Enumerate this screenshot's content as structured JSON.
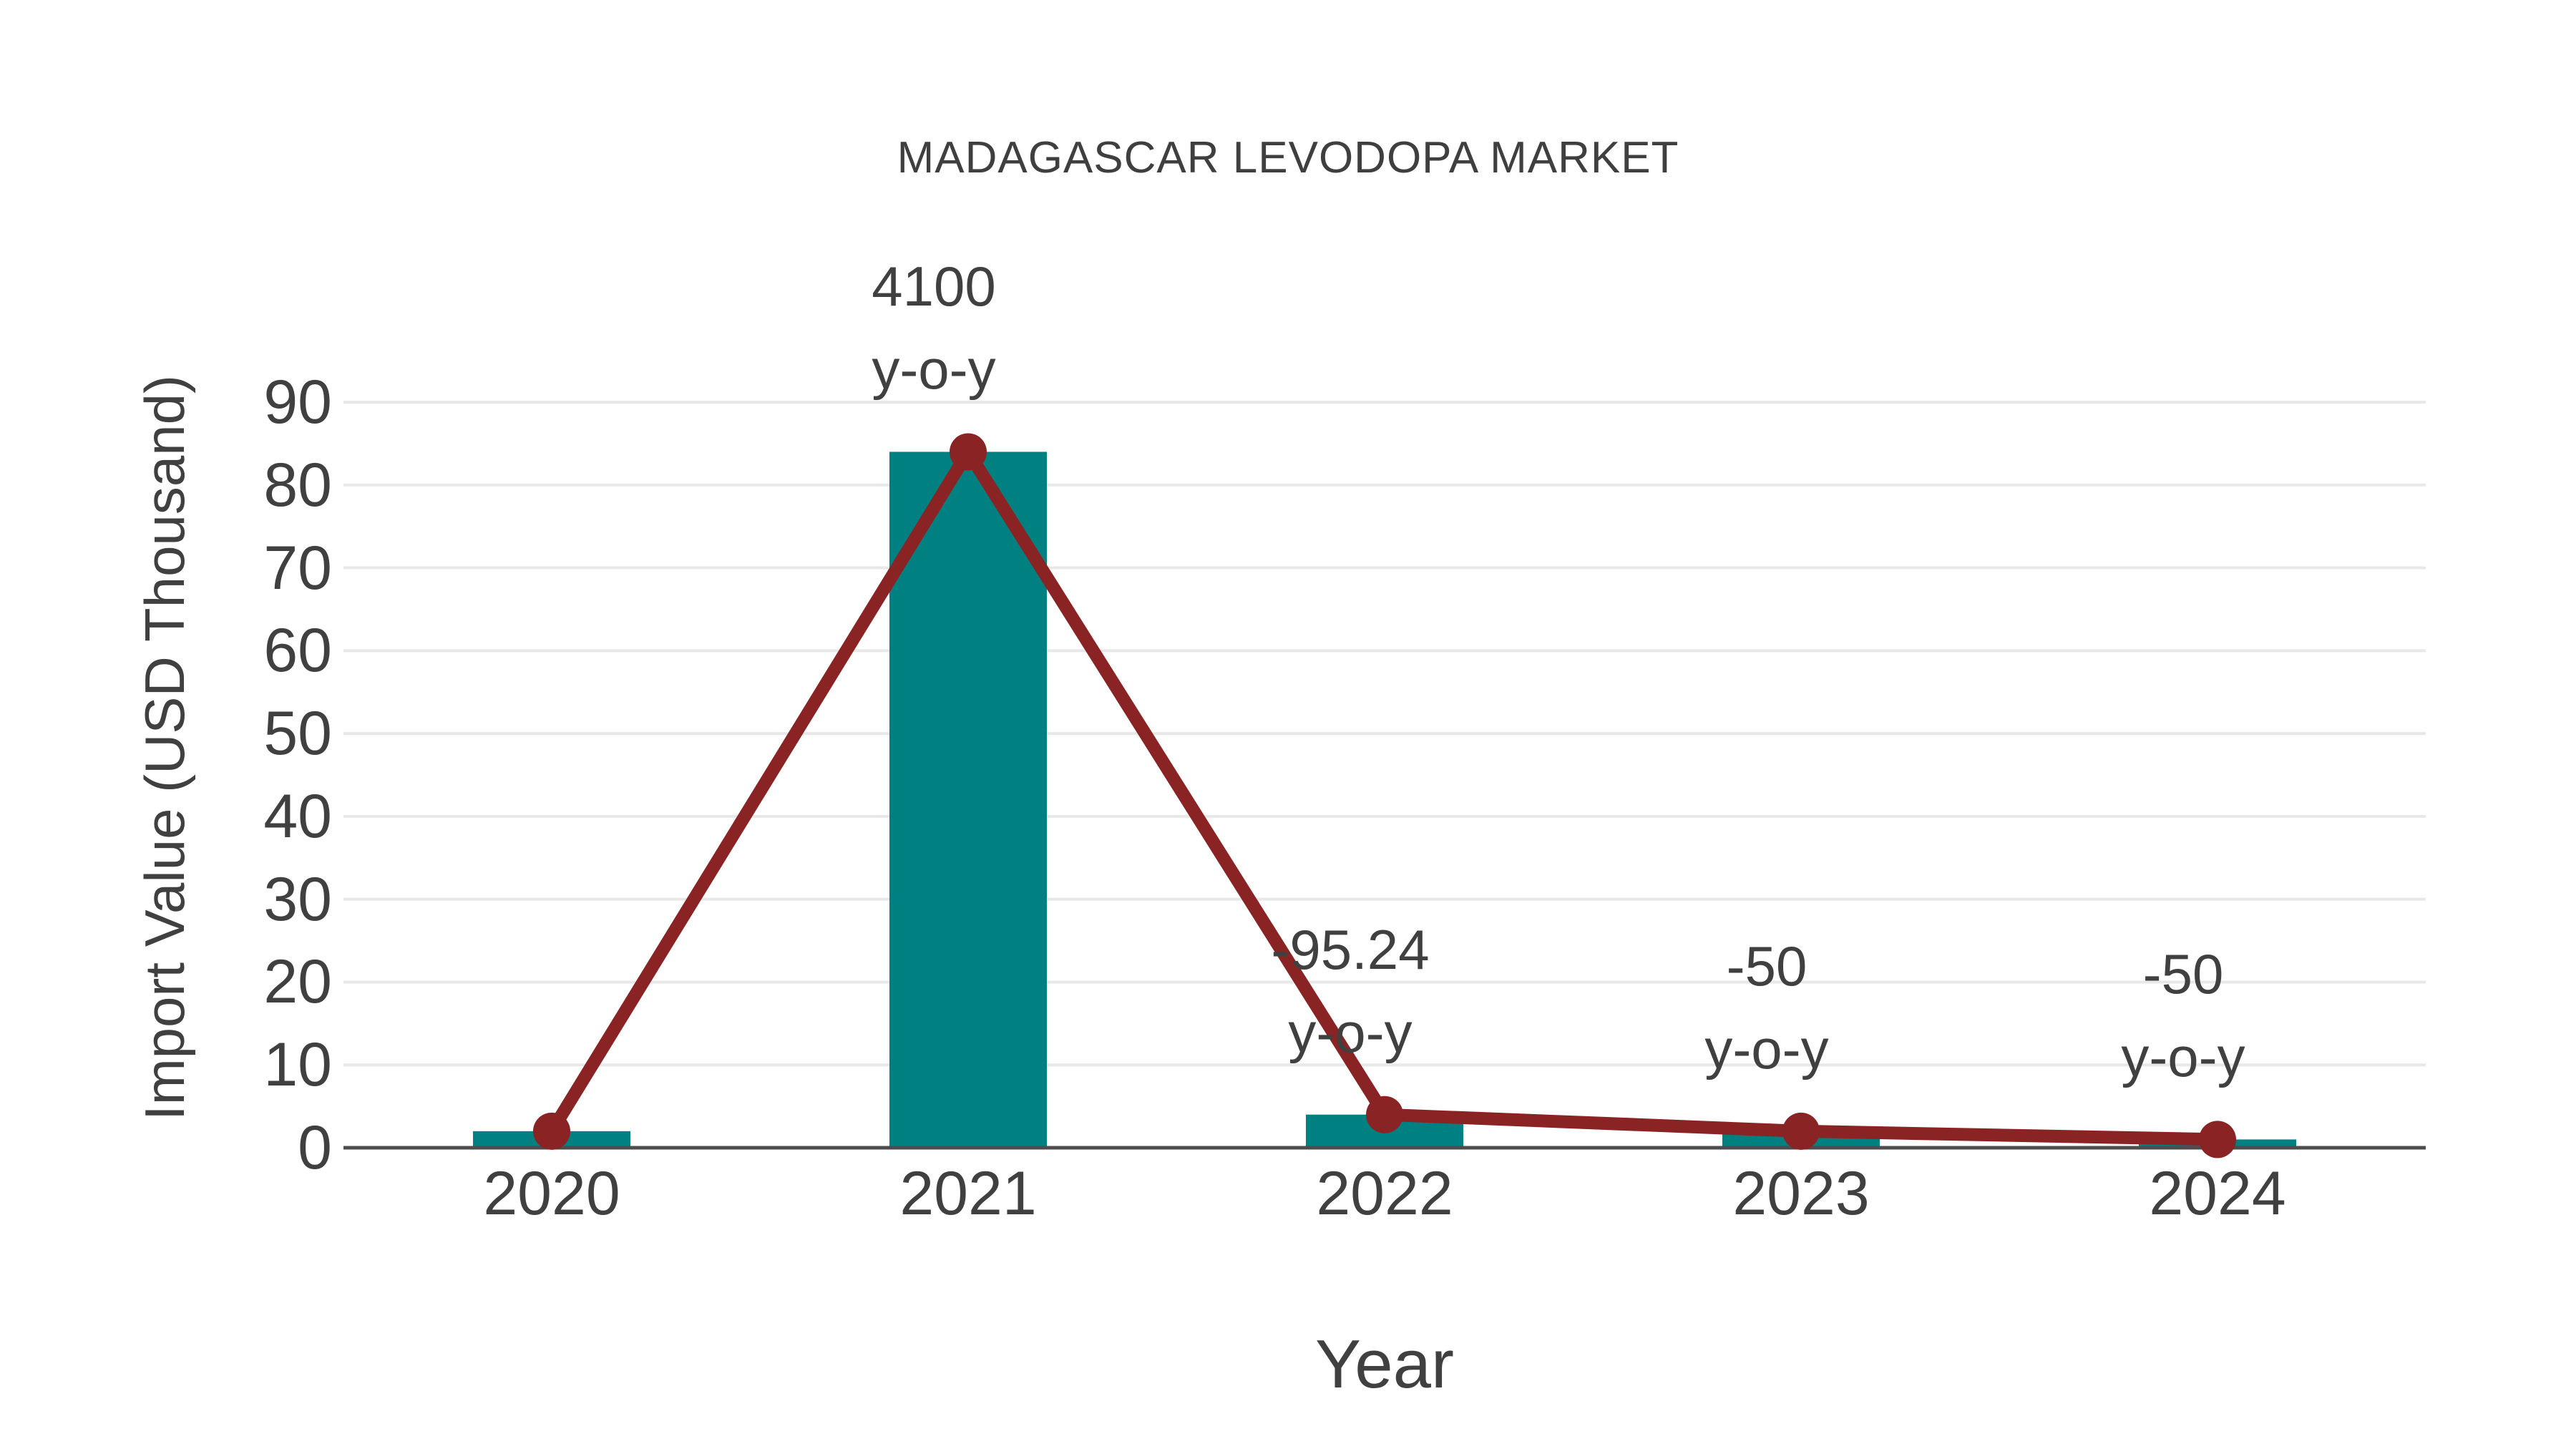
{
  "chart_data": {
    "type": "bar",
    "title": "MADAGASCAR LEVODOPA MARKET",
    "xlabel": "Year",
    "ylabel": "Import Value (USD Thousand)",
    "categories": [
      "2020",
      "2021",
      "2022",
      "2023",
      "2024"
    ],
    "series": [
      {
        "name": "import-value-bars",
        "type": "bar",
        "values": [
          2,
          84,
          4,
          2,
          1
        ],
        "color": "#008080"
      },
      {
        "name": "import-value-line",
        "type": "line",
        "values": [
          2,
          84,
          4,
          2,
          1
        ],
        "color": "#8a2323"
      }
    ],
    "annotations": [
      {
        "category": "2021",
        "line1": "4100",
        "line2": "y-o-y"
      },
      {
        "category": "2022",
        "line1": "-95.24",
        "line2": "y-o-y"
      },
      {
        "category": "2023",
        "line1": "-50",
        "line2": "y-o-y"
      },
      {
        "category": "2024",
        "line1": "-50",
        "line2": "y-o-y"
      }
    ],
    "yticks": [
      0,
      10,
      20,
      30,
      40,
      50,
      60,
      70,
      80,
      90
    ],
    "ylim": [
      0,
      90
    ],
    "grid": "horizontal-major",
    "legend": "none",
    "colors": {
      "bar": "#008080",
      "line": "#8a2323",
      "text": "#404040",
      "gridline": "#e8e8e8",
      "axis": "#4d4d4d",
      "background": "#ffffff"
    }
  }
}
